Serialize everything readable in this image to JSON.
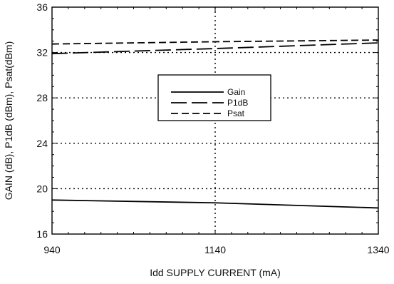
{
  "chart_data": {
    "type": "line",
    "title": "",
    "xlabel": "Idd SUPPLY CURRENT (mA)",
    "ylabel": "GAIN (dB), P1dB (dBm), Psat(dBm)",
    "xlim": [
      940,
      1340
    ],
    "ylim": [
      16,
      36
    ],
    "xticks": [
      940,
      1140,
      1340
    ],
    "yticks": [
      16,
      20,
      24,
      28,
      32,
      36
    ],
    "grid": "dotted at x=1140 and y=20, 24, 28, 32",
    "legend_position": "center",
    "series": [
      {
        "name": "Gain",
        "style": "solid",
        "x": [
          940,
          1140,
          1340
        ],
        "y": [
          19.0,
          18.75,
          18.3
        ]
      },
      {
        "name": "P1dB",
        "style": "long-dash",
        "x": [
          940,
          1140,
          1340
        ],
        "y": [
          31.9,
          32.35,
          32.85
        ]
      },
      {
        "name": "Psat",
        "style": "dash",
        "x": [
          940,
          1140,
          1340
        ],
        "y": [
          32.75,
          32.95,
          33.1
        ]
      }
    ]
  }
}
